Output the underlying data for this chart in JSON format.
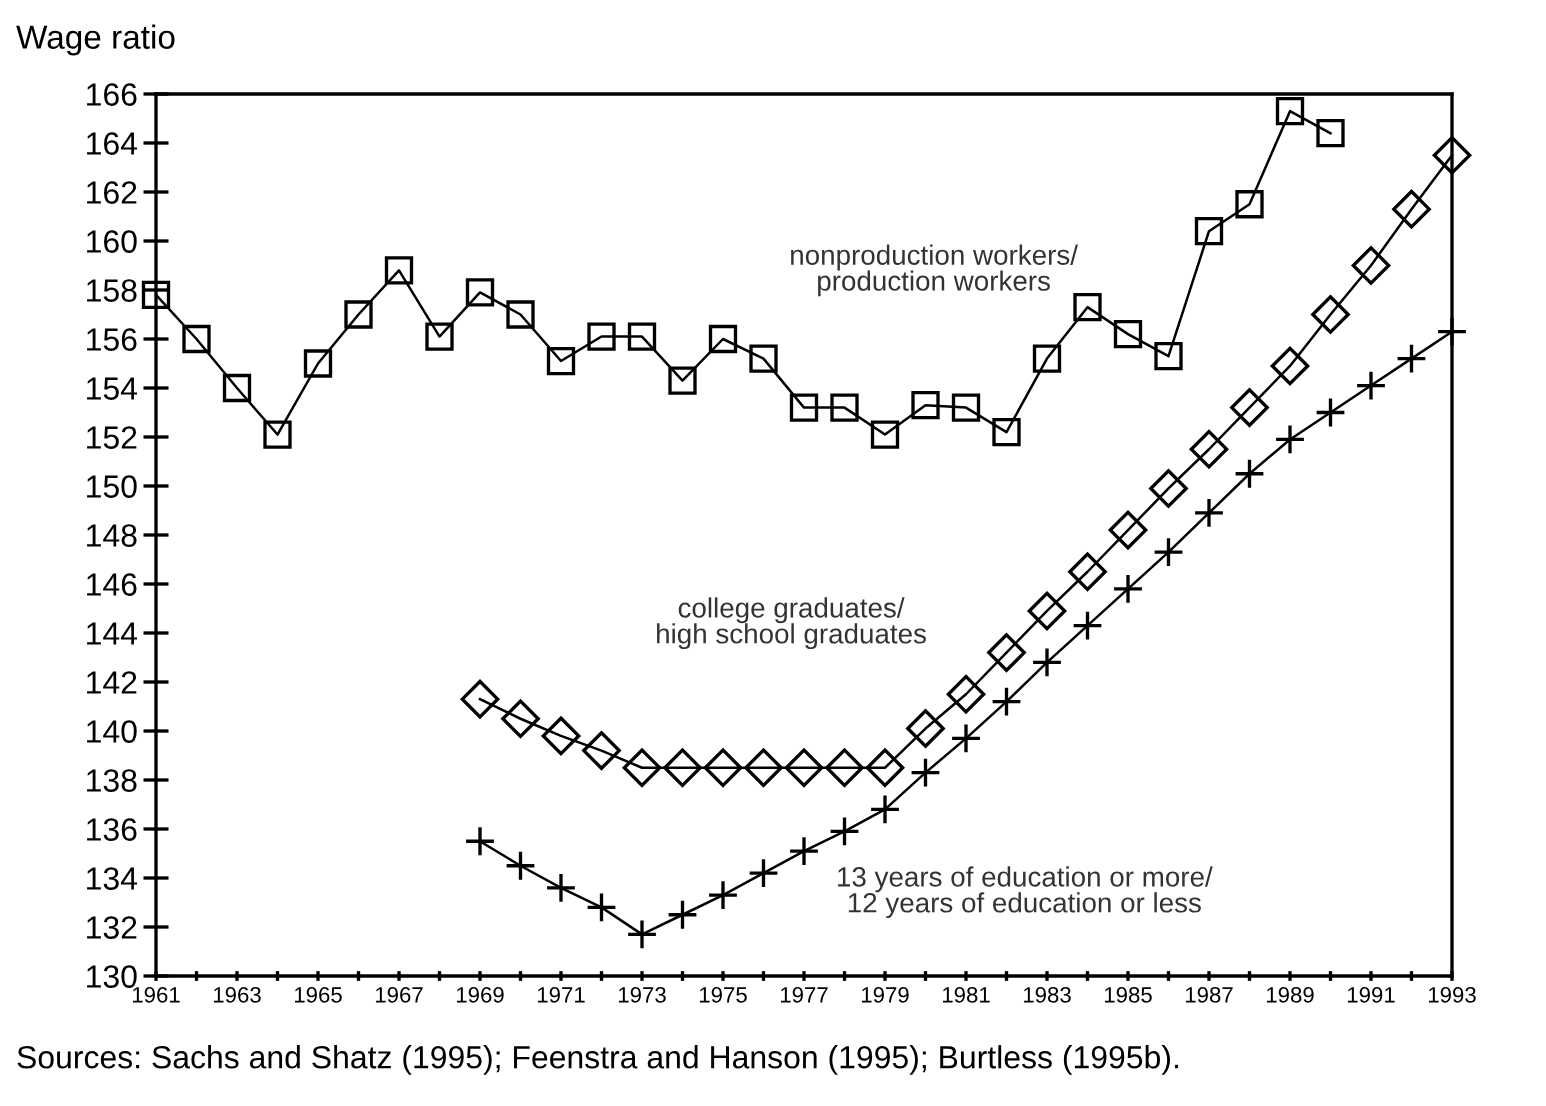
{
  "chart_data": {
    "type": "line",
    "ylabel": "Wage ratio",
    "xlim": [
      1961,
      1993
    ],
    "ylim": [
      130,
      166
    ],
    "xticks": [
      1961,
      {
        "value": 1962,
        "label": null
      },
      1963,
      {
        "value": 1964,
        "label": null
      },
      1965,
      {
        "value": 1966,
        "label": null
      },
      1967,
      {
        "value": 1968,
        "label": null
      },
      1969,
      {
        "value": 1970,
        "label": null
      },
      1971,
      {
        "value": 1972,
        "label": null
      },
      1973,
      {
        "value": 1974,
        "label": null
      },
      1975,
      {
        "value": 1976,
        "label": null
      },
      1977,
      {
        "value": 1978,
        "label": null
      },
      1979,
      {
        "value": 1980,
        "label": null
      },
      1981,
      {
        "value": 1982,
        "label": null
      },
      1983,
      {
        "value": 1984,
        "label": null
      },
      1985,
      {
        "value": 1986,
        "label": null
      },
      1987,
      {
        "value": 1988,
        "label": null
      },
      1989,
      {
        "value": 1990,
        "label": null
      },
      1991,
      {
        "value": 1992,
        "label": null
      },
      1993
    ],
    "yticks": [
      130,
      132,
      134,
      136,
      138,
      140,
      142,
      144,
      146,
      148,
      150,
      152,
      154,
      156,
      158,
      160,
      162,
      164,
      166
    ],
    "grid": false,
    "legend": false,
    "line_style": "solid",
    "series": [
      {
        "name": "nonproduction workers/\nproduction workers",
        "color": "#000000",
        "marker": "square",
        "x": [
          1961,
          1962,
          1963,
          1964,
          1965,
          1966,
          1967,
          1968,
          1969,
          1970,
          1971,
          1972,
          1973,
          1974,
          1975,
          1976,
          1977,
          1978,
          1979,
          1980,
          1981,
          1982,
          1983,
          1984,
          1985,
          1986,
          1987,
          1988,
          1989,
          1990
        ],
        "values": [
          157.8,
          156,
          154,
          152.1,
          155,
          157,
          158.8,
          156.1,
          157.9,
          157,
          155.1,
          156.1,
          156.1,
          154.3,
          156,
          155.2,
          153.2,
          153.2,
          152.1,
          153.3,
          153.2,
          152.2,
          155.2,
          157.3,
          156.2,
          155.3,
          160.4,
          161.5,
          165.3,
          164.4
        ]
      },
      {
        "name": "college graduates/\nhigh school graduates",
        "color": "#000000",
        "marker": "diamond",
        "x": [
          1969,
          1970,
          1971,
          1972,
          1973,
          1974,
          1975,
          1976,
          1977,
          1978,
          1979,
          1980,
          1981,
          1982,
          1983,
          1984,
          1985,
          1986,
          1987,
          1988,
          1989,
          1990,
          1991,
          1992,
          1993
        ],
        "values": [
          141.3,
          140.5,
          139.8,
          139.2,
          138.5,
          138.5,
          138.5,
          138.5,
          138.5,
          138.5,
          138.5,
          140.1,
          141.5,
          143.2,
          144.9,
          146.5,
          148.2,
          149.9,
          151.5,
          153.2,
          154.9,
          157,
          159,
          161.3,
          163.5
        ]
      },
      {
        "name": "13 years of education or more/\n12 years of education or less",
        "color": "#000000",
        "marker": "cross",
        "x": [
          1969,
          1970,
          1971,
          1972,
          1973,
          1974,
          1975,
          1976,
          1977,
          1978,
          1979,
          1980,
          1981,
          1982,
          1983,
          1984,
          1985,
          1986,
          1987,
          1988,
          1989,
          1990,
          1991,
          1992,
          1993
        ],
        "values": [
          135.5,
          134.5,
          133.6,
          132.8,
          131.7,
          132.5,
          133.3,
          134.2,
          135.1,
          135.9,
          136.8,
          138.3,
          139.7,
          141.2,
          142.8,
          144.3,
          145.8,
          147.3,
          148.9,
          150.5,
          151.9,
          153,
          154.1,
          155.2,
          156.3
        ]
      }
    ],
    "annotations": [
      "Sources: Sachs and Shatz (1995); Feenstra and Hanson (1995); Burtless (1995b)."
    ]
  }
}
